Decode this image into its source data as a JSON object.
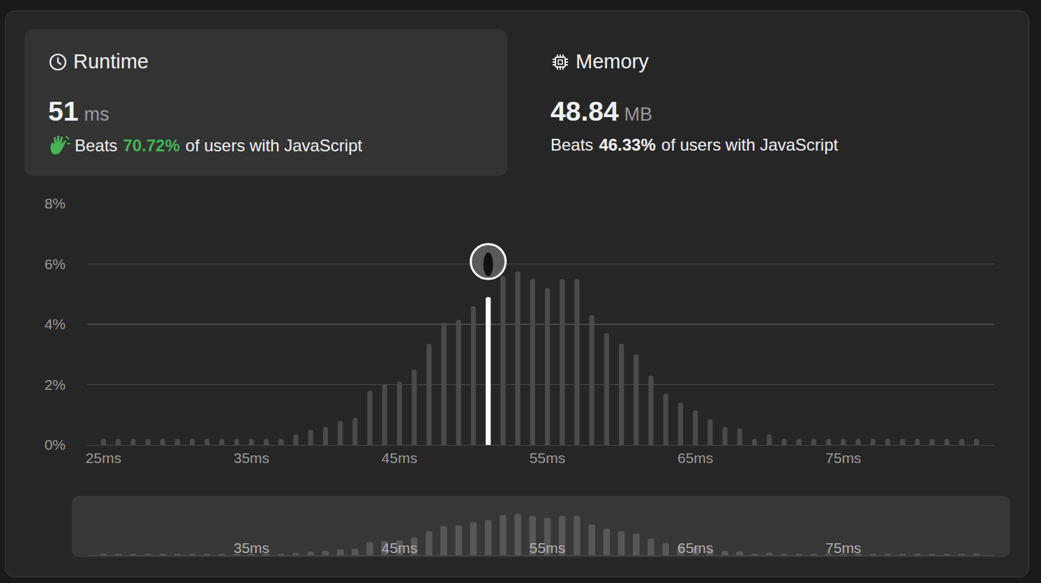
{
  "cards": [
    {
      "title": "Runtime",
      "value": "51",
      "unit": "ms",
      "beats_prefix": "Beats",
      "beats_value": "70.72%",
      "beats_suffix": "of users with JavaScript"
    },
    {
      "title": "Memory",
      "value": "48.84",
      "unit": "MB",
      "beats_prefix": "Beats",
      "beats_value": "46.33%",
      "beats_suffix": "of users with JavaScript"
    }
  ],
  "chart_data": {
    "type": "bar",
    "x": [
      25,
      26,
      27,
      28,
      29,
      30,
      31,
      32,
      33,
      34,
      35,
      36,
      37,
      38,
      39,
      40,
      41,
      42,
      43,
      44,
      45,
      46,
      47,
      48,
      49,
      50,
      51,
      52,
      53,
      54,
      55,
      56,
      57,
      58,
      59,
      60,
      61,
      62,
      63,
      64,
      65,
      66,
      67,
      68,
      69,
      70,
      71,
      72,
      73,
      74,
      75,
      76,
      77,
      78,
      79,
      80,
      81,
      82,
      83,
      84
    ],
    "values": [
      0.2,
      0.2,
      0.2,
      0.2,
      0.2,
      0.2,
      0.2,
      0.2,
      0.2,
      0.2,
      0.2,
      0.2,
      0.2,
      0.35,
      0.5,
      0.6,
      0.8,
      0.9,
      1.8,
      2.0,
      2.1,
      2.5,
      3.35,
      4.05,
      4.15,
      4.6,
      4.9,
      5.6,
      5.75,
      5.5,
      5.2,
      5.5,
      5.5,
      4.3,
      3.7,
      3.35,
      3.0,
      2.3,
      1.7,
      1.4,
      1.15,
      0.85,
      0.6,
      0.55,
      0.2,
      0.35,
      0.2,
      0.2,
      0.2,
      0.2,
      0.2,
      0.2,
      0.2,
      0.2,
      0.2,
      0.2,
      0.2,
      0.2,
      0.2,
      0.2
    ],
    "colors": [
      "#4a4a4a",
      "#4a4a4a",
      "#4a4a4a",
      "#4a4a4a",
      "#4a4a4a",
      "#4a4a4a",
      "#4a4a4a",
      "#4a4a4a",
      "#4a4a4a",
      "#4a4a4a",
      "#4a4a4a",
      "#4a4a4a",
      "#4a4a4a",
      "#4a4a4a",
      "#4a4a4a",
      "#4a4a4a",
      "#4a4a4a",
      "#4a4a4a",
      "#4a4a4a",
      "#4a4a4a",
      "#4a4a4a",
      "#4a4a4a",
      "#4a4a4a",
      "#4a4a4a",
      "#4a4a4a",
      "#4a4a4a",
      "#ffffff",
      "#4a4a4a",
      "#4a4a4a",
      "#4a4a4a",
      "#4a4a4a",
      "#4a4a4a",
      "#4a4a4a",
      "#4a4a4a",
      "#4a4a4a",
      "#4a4a4a",
      "#4a4a4a",
      "#4a4a4a",
      "#4a4a4a",
      "#4a4a4a",
      "#4a4a4a",
      "#4a4a4a",
      "#4a4a4a",
      "#4a4a4a",
      "#4a4a4a",
      "#4a4a4a",
      "#4a4a4a",
      "#4a4a4a",
      "#4a4a4a",
      "#4a4a4a",
      "#4a4a4a",
      "#4a4a4a",
      "#4a4a4a",
      "#4a4a4a",
      "#4a4a4a",
      "#4a4a4a",
      "#4a4a4a",
      "#4a4a4a",
      "#4a4a4a",
      "#4a4a4a"
    ],
    "xlim": [
      23.9,
      85.2
    ],
    "xticks": [
      {
        "value": 25,
        "label": "25ms"
      },
      {
        "value": 35,
        "label": "35ms"
      },
      {
        "value": 45,
        "label": "45ms"
      },
      {
        "value": 55,
        "label": "55ms"
      },
      {
        "value": 65,
        "label": "65ms"
      },
      {
        "value": 75,
        "label": "75ms"
      }
    ],
    "ylim": [
      0,
      8
    ],
    "yticks": [
      {
        "value": 0,
        "label": "0%"
      },
      {
        "value": 2,
        "label": "2%"
      },
      {
        "value": 4,
        "label": "4%"
      },
      {
        "value": 6,
        "label": "6%"
      },
      {
        "value": 8,
        "label": "8%"
      }
    ],
    "grid": true
  }
}
